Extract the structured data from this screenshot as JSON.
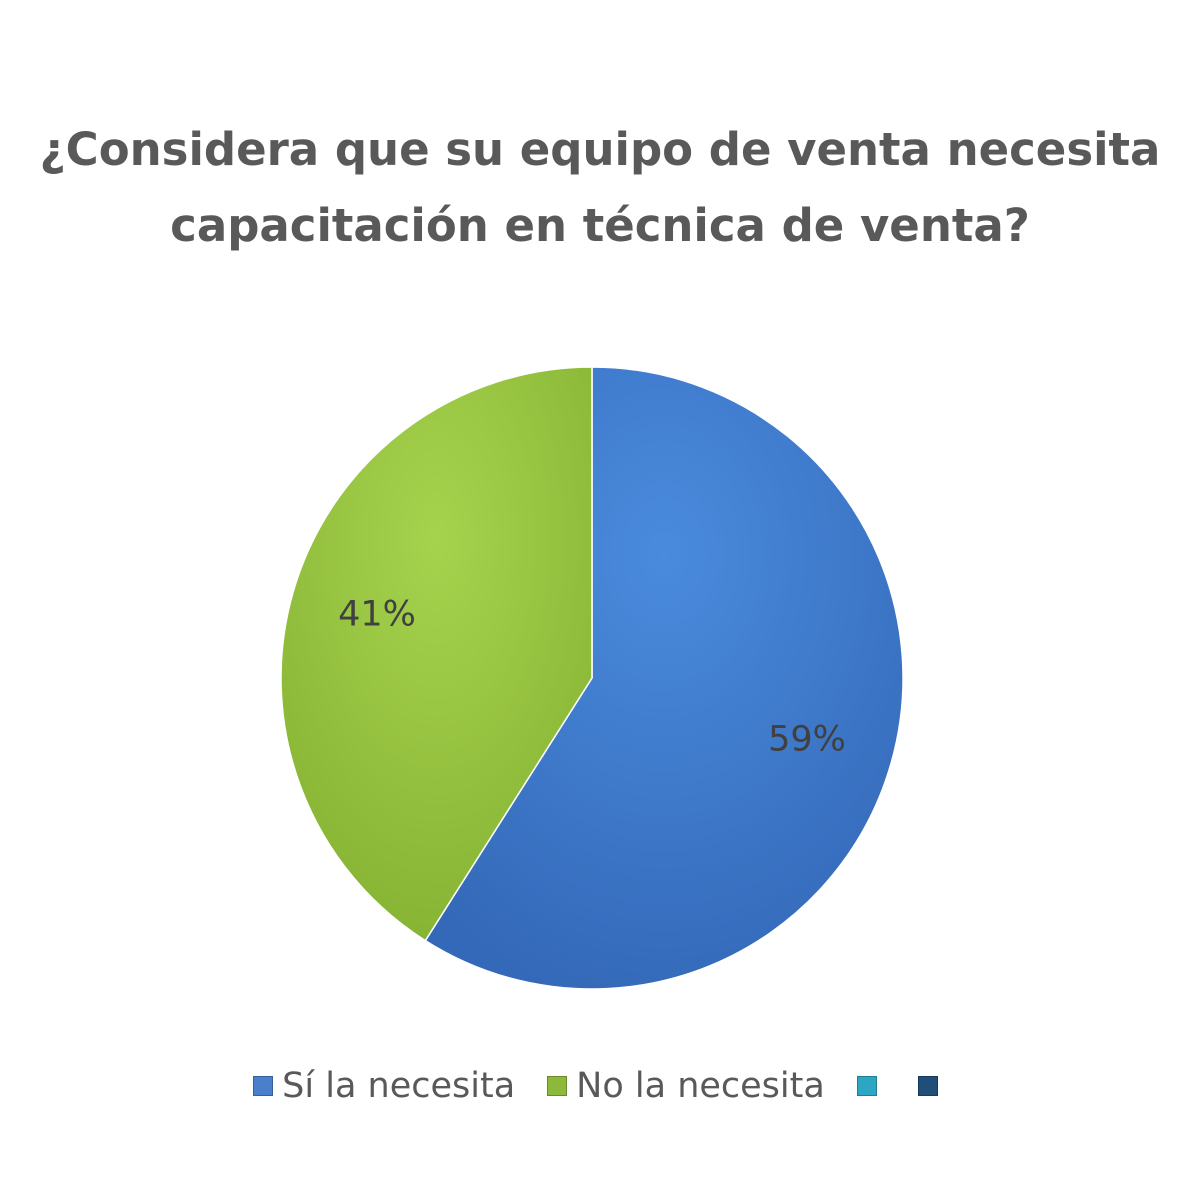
{
  "chart_data": {
    "type": "pie",
    "title_lines": [
      "¿Considera que su equipo de venta necesita",
      "capacitación en técnica de venta?"
    ],
    "slices": [
      {
        "name": "Sí la necesita",
        "value": 59,
        "label": "59%",
        "color": "#4180D3"
      },
      {
        "name": "No la necesita",
        "value": 41,
        "label": "41%",
        "color": "#9BC844"
      }
    ],
    "legend": {
      "position": "bottom",
      "entries": [
        {
          "label": "Sí la necesita",
          "color": "#4A7FCC"
        },
        {
          "label": "No la necesita",
          "color": "#8CB83B"
        },
        {
          "label": "",
          "color": "#2BA7C4"
        },
        {
          "label": "",
          "color": "#1F4E79"
        }
      ]
    }
  }
}
